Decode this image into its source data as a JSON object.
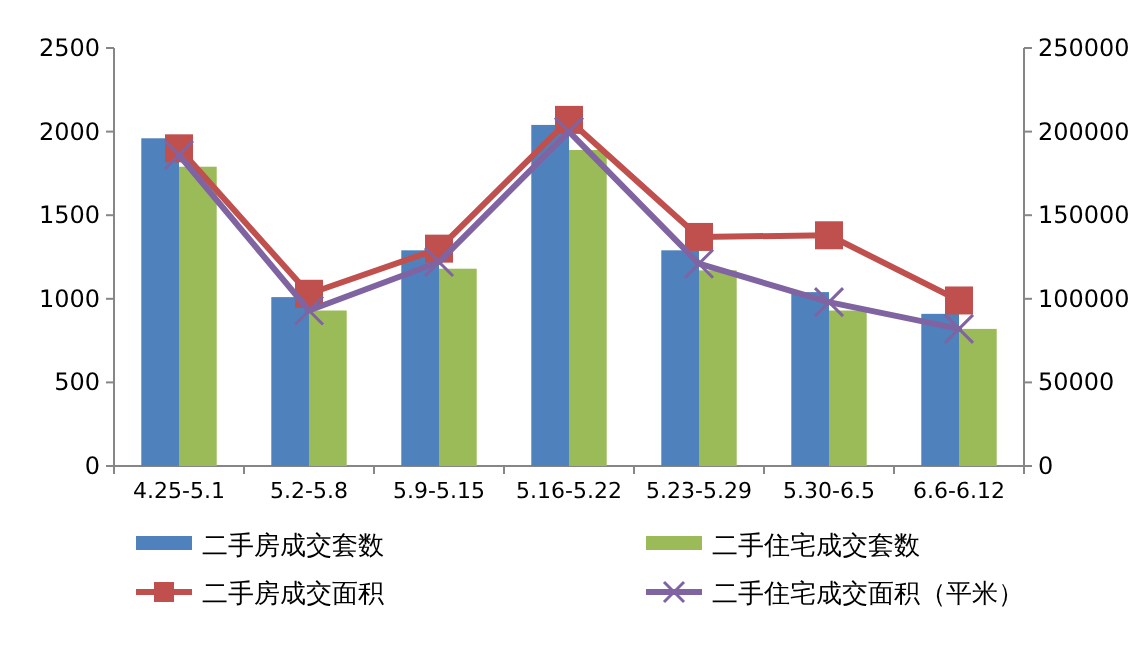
{
  "chart_data": {
    "type": "bar",
    "categories": [
      "4.25-5.1",
      "5.2-5.8",
      "5.9-5.15",
      "5.16-5.22",
      "5.23-5.29",
      "5.30-6.5",
      "6.6-6.12"
    ],
    "series": [
      {
        "name": "二手房成交套数",
        "color": "#4f81bd",
        "values": [
          1960,
          1010,
          1290,
          2040,
          1290,
          1040,
          910
        ]
      },
      {
        "name": "二手住宅成交套数",
        "color": "#9bbb59",
        "values": [
          1790,
          930,
          1180,
          1890,
          1170,
          930,
          820
        ]
      },
      {
        "name": "二手房成交面积",
        "color": "#c0504d",
        "type": "line",
        "axis": "y2",
        "marker": "square",
        "values": [
          190000,
          103000,
          130000,
          207000,
          137000,
          138000,
          99000
        ]
      },
      {
        "name": "二手住宅成交面积（平米）",
        "color": "#8064a2",
        "type": "line",
        "axis": "y2",
        "marker": "cross",
        "values": [
          186000,
          93000,
          122000,
          200000,
          121000,
          98000,
          82000
        ]
      }
    ],
    "ylim": [
      0,
      2500
    ],
    "yticks": [
      0,
      500,
      1000,
      1500,
      2000,
      2500
    ],
    "y2lim": [
      0,
      250000
    ],
    "y2ticks": [
      0,
      50000,
      100000,
      150000,
      200000,
      250000
    ],
    "legend": "bottom"
  }
}
